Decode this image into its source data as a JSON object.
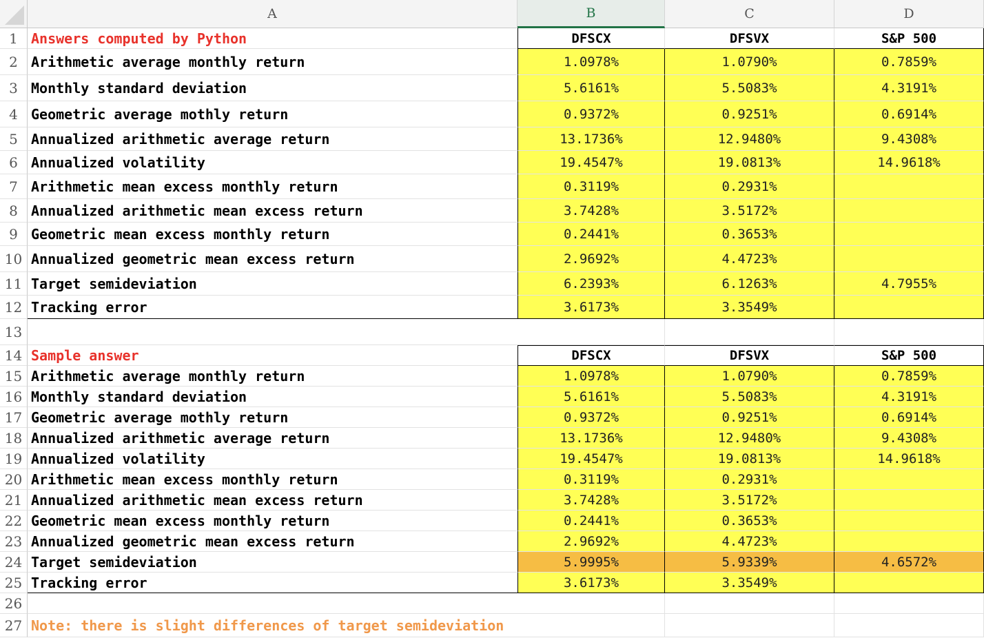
{
  "column_headers": [
    "A",
    "B",
    "C",
    "D"
  ],
  "selected_column": "B",
  "row_numbers": [
    "1",
    "2",
    "3",
    "4",
    "5",
    "6",
    "7",
    "8",
    "9",
    "10",
    "11",
    "12",
    "13",
    "14",
    "15",
    "16",
    "17",
    "18",
    "19",
    "20",
    "21",
    "22",
    "23",
    "24",
    "25",
    "26",
    "27"
  ],
  "section1": {
    "title": "Answers computed by Python",
    "headers": [
      "DFSCX",
      "DFSVX",
      "S&P 500"
    ],
    "rows": [
      {
        "label": "Arithmetic average monthly return",
        "values": [
          "1.0978%",
          "1.0790%",
          "0.7859%"
        ]
      },
      {
        "label": "Monthly standard deviation",
        "values": [
          "5.6161%",
          "5.5083%",
          "4.3191%"
        ]
      },
      {
        "label": "Geometric average mothly return",
        "values": [
          "0.9372%",
          "0.9251%",
          "0.6914%"
        ]
      },
      {
        "label": "Annualized arithmetic average return",
        "values": [
          "13.1736%",
          "12.9480%",
          "9.4308%"
        ]
      },
      {
        "label": "Annualized volatility",
        "values": [
          "19.4547%",
          "19.0813%",
          "14.9618%"
        ]
      },
      {
        "label": "Arithmetic mean excess monthly return",
        "values": [
          "0.3119%",
          "0.2931%",
          ""
        ]
      },
      {
        "label": "Annualized arithmetic mean excess return",
        "values": [
          "3.7428%",
          "3.5172%",
          ""
        ]
      },
      {
        "label": "Geometric mean excess monthly return",
        "values": [
          "0.2441%",
          "0.3653%",
          ""
        ]
      },
      {
        "label": "Annualized geometric mean excess return",
        "values": [
          "2.9692%",
          "4.4723%",
          ""
        ]
      },
      {
        "label": "Target semideviation",
        "values": [
          "6.2393%",
          "6.1263%",
          "4.7955%"
        ]
      },
      {
        "label": "Tracking error",
        "values": [
          "3.6173%",
          "3.3549%",
          ""
        ]
      }
    ]
  },
  "section2": {
    "title": "Sample answer",
    "headers": [
      "DFSCX",
      "DFSVX",
      "S&P 500"
    ],
    "rows": [
      {
        "label": "Arithmetic average monthly return",
        "values": [
          "1.0978%",
          "1.0790%",
          "0.7859%"
        ]
      },
      {
        "label": "Monthly standard deviation",
        "values": [
          "5.6161%",
          "5.5083%",
          "4.3191%"
        ]
      },
      {
        "label": "Geometric average mothly return",
        "values": [
          "0.9372%",
          "0.9251%",
          "0.6914%"
        ]
      },
      {
        "label": "Annualized arithmetic average return",
        "values": [
          "13.1736%",
          "12.9480%",
          "9.4308%"
        ]
      },
      {
        "label": "Annualized volatility",
        "values": [
          "19.4547%",
          "19.0813%",
          "14.9618%"
        ]
      },
      {
        "label": "Arithmetic mean excess monthly return",
        "values": [
          "0.3119%",
          "0.2931%",
          ""
        ]
      },
      {
        "label": "Annualized arithmetic mean excess return",
        "values": [
          "3.7428%",
          "3.5172%",
          ""
        ]
      },
      {
        "label": "Geometric mean excess monthly return",
        "values": [
          "0.2441%",
          "0.3653%",
          ""
        ]
      },
      {
        "label": "Annualized geometric mean excess return",
        "values": [
          "2.9692%",
          "4.4723%",
          ""
        ]
      },
      {
        "label": "Target semideviation",
        "values": [
          "5.9995%",
          "5.9339%",
          "4.6572%"
        ],
        "highlight": "orange"
      },
      {
        "label": "Tracking error",
        "values": [
          "3.6173%",
          "3.3549%",
          ""
        ]
      }
    ]
  },
  "note": "Note: there is slight differences of target semideviation",
  "colors": {
    "title_red": "#e8322b",
    "note_orange": "#f0984a",
    "cell_yellow": "#ffff55",
    "cell_orange": "#f6bd44",
    "selected_header_green": "#217346"
  }
}
